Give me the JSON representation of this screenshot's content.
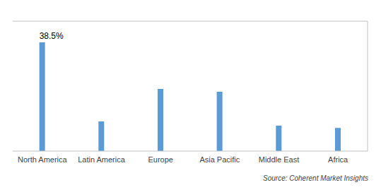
{
  "chart_data": {
    "type": "bar",
    "categories": [
      "North America",
      "Latin America",
      "Europe",
      "Asia Pacific",
      "Middle East",
      "Africa"
    ],
    "values": [
      38.5,
      10.5,
      22.0,
      21.0,
      9.0,
      8.2
    ],
    "color": "#5B9BD5",
    "ylim": [
      0,
      46
    ],
    "yticks": [],
    "grid": false,
    "tick_labels": "x",
    "annotations": [
      {
        "text": "38.5%",
        "x": "North America",
        "y": 38.5
      }
    ],
    "source": "Source: Coherent Market Insights"
  }
}
